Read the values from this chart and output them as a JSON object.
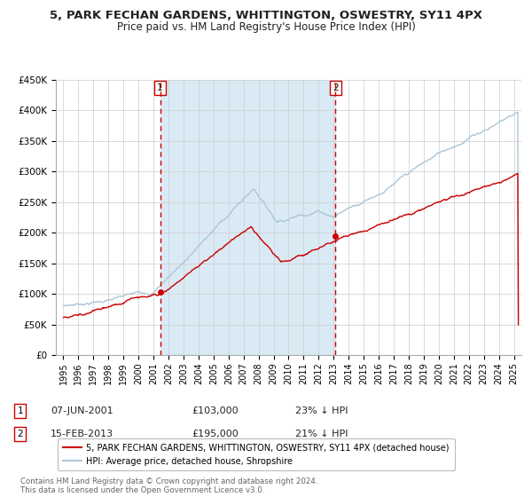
{
  "title": "5, PARK FECHAN GARDENS, WHITTINGTON, OSWESTRY, SY11 4PX",
  "subtitle": "Price paid vs. HM Land Registry's House Price Index (HPI)",
  "xlim": [
    1994.5,
    2025.5
  ],
  "ylim": [
    0,
    450000
  ],
  "yticks": [
    0,
    50000,
    100000,
    150000,
    200000,
    250000,
    300000,
    350000,
    400000,
    450000
  ],
  "ytick_labels": [
    "£0",
    "£50K",
    "£100K",
    "£150K",
    "£200K",
    "£250K",
    "£300K",
    "£350K",
    "£400K",
    "£450K"
  ],
  "xticks": [
    1995,
    1996,
    1997,
    1998,
    1999,
    2000,
    2001,
    2002,
    2003,
    2004,
    2005,
    2006,
    2007,
    2008,
    2009,
    2010,
    2011,
    2012,
    2013,
    2014,
    2015,
    2016,
    2017,
    2018,
    2019,
    2020,
    2021,
    2022,
    2023,
    2024,
    2025
  ],
  "hpi_color": "#aec6d8",
  "price_color": "#cc0000",
  "shaded_color": "#daeaf5",
  "vline_color": "#cc0000",
  "marker1_date": 2001.44,
  "marker1_value": 103000,
  "marker2_date": 2013.12,
  "marker2_value": 195000,
  "legend_label1": "5, PARK FECHAN GARDENS, WHITTINGTON, OSWESTRY, SY11 4PX (detached house)",
  "legend_label2": "HPI: Average price, detached house, Shropshire",
  "table_row1": [
    "1",
    "07-JUN-2001",
    "£103,000",
    "23% ↓ HPI"
  ],
  "table_row2": [
    "2",
    "15-FEB-2013",
    "£195,000",
    "21% ↓ HPI"
  ],
  "footer": "Contains HM Land Registry data © Crown copyright and database right 2024.\nThis data is licensed under the Open Government Licence v3.0.",
  "title_fontsize": 9.5,
  "subtitle_fontsize": 8.5,
  "tick_fontsize": 7.5,
  "background_color": "#ffffff",
  "grid_color": "#cccccc"
}
